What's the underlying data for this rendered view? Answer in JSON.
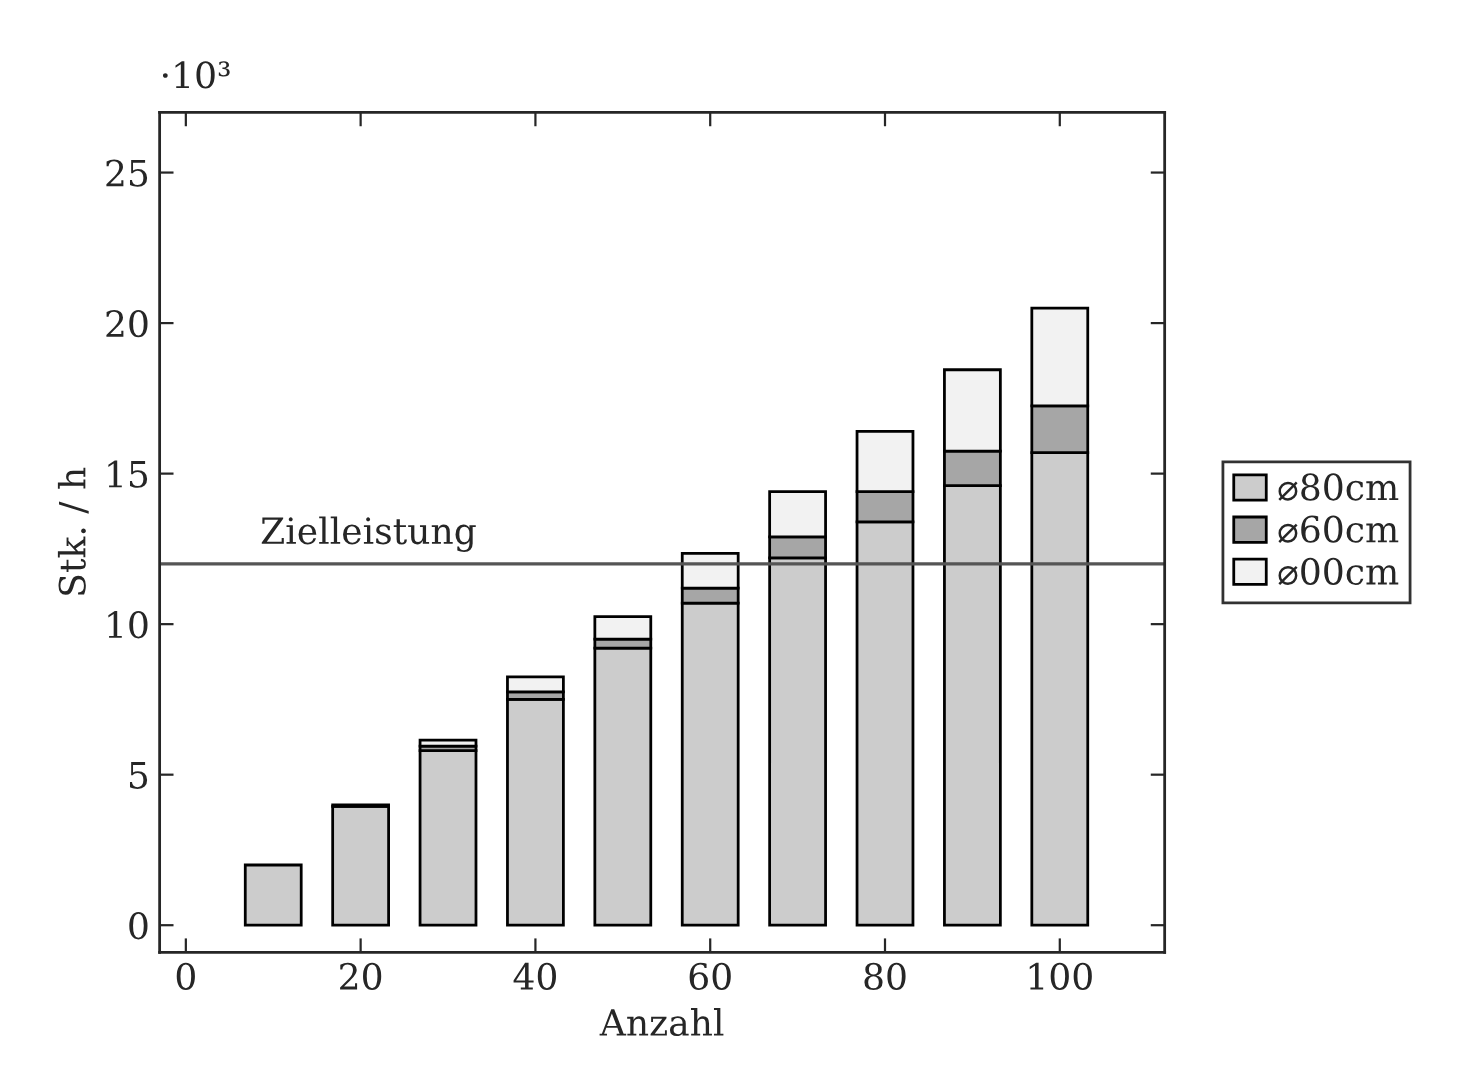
{
  "chart_data": {
    "type": "bar",
    "stacked": true,
    "xlabel": "Anzahl",
    "ylabel": "Stk. / h",
    "annotations": [
      "·10³"
    ],
    "x": [
      10,
      20,
      30,
      40,
      50,
      60,
      70,
      80,
      90,
      100
    ],
    "series": [
      {
        "name": "⌀80cm",
        "color": "#cccccc",
        "values": [
          2.0,
          3.95,
          5.8,
          7.5,
          9.2,
          10.7,
          12.2,
          13.4,
          14.6,
          15.7
        ]
      },
      {
        "name": "⌀60cm",
        "color": "#a6a6a6",
        "values": [
          null,
          null,
          0.15,
          0.25,
          0.3,
          0.5,
          0.7,
          1.0,
          1.15,
          1.55
        ]
      },
      {
        "name": "⌀00cm",
        "color": "#f2f2f2",
        "values": [
          null,
          0.05,
          0.2,
          0.5,
          0.75,
          1.15,
          1.5,
          2.0,
          2.7,
          3.25
        ]
      }
    ],
    "ref_lines": [
      {
        "axis": "y",
        "value": 12,
        "label": "Zielleistung",
        "color": "#555555"
      }
    ],
    "xlim": [
      -3,
      112
    ],
    "xticks": [
      0,
      20,
      40,
      60,
      80,
      100
    ],
    "ylim": [
      -0.9,
      27
    ],
    "yticks": [
      0,
      5,
      10,
      15,
      20,
      25
    ],
    "grid": false,
    "legend": "right"
  }
}
